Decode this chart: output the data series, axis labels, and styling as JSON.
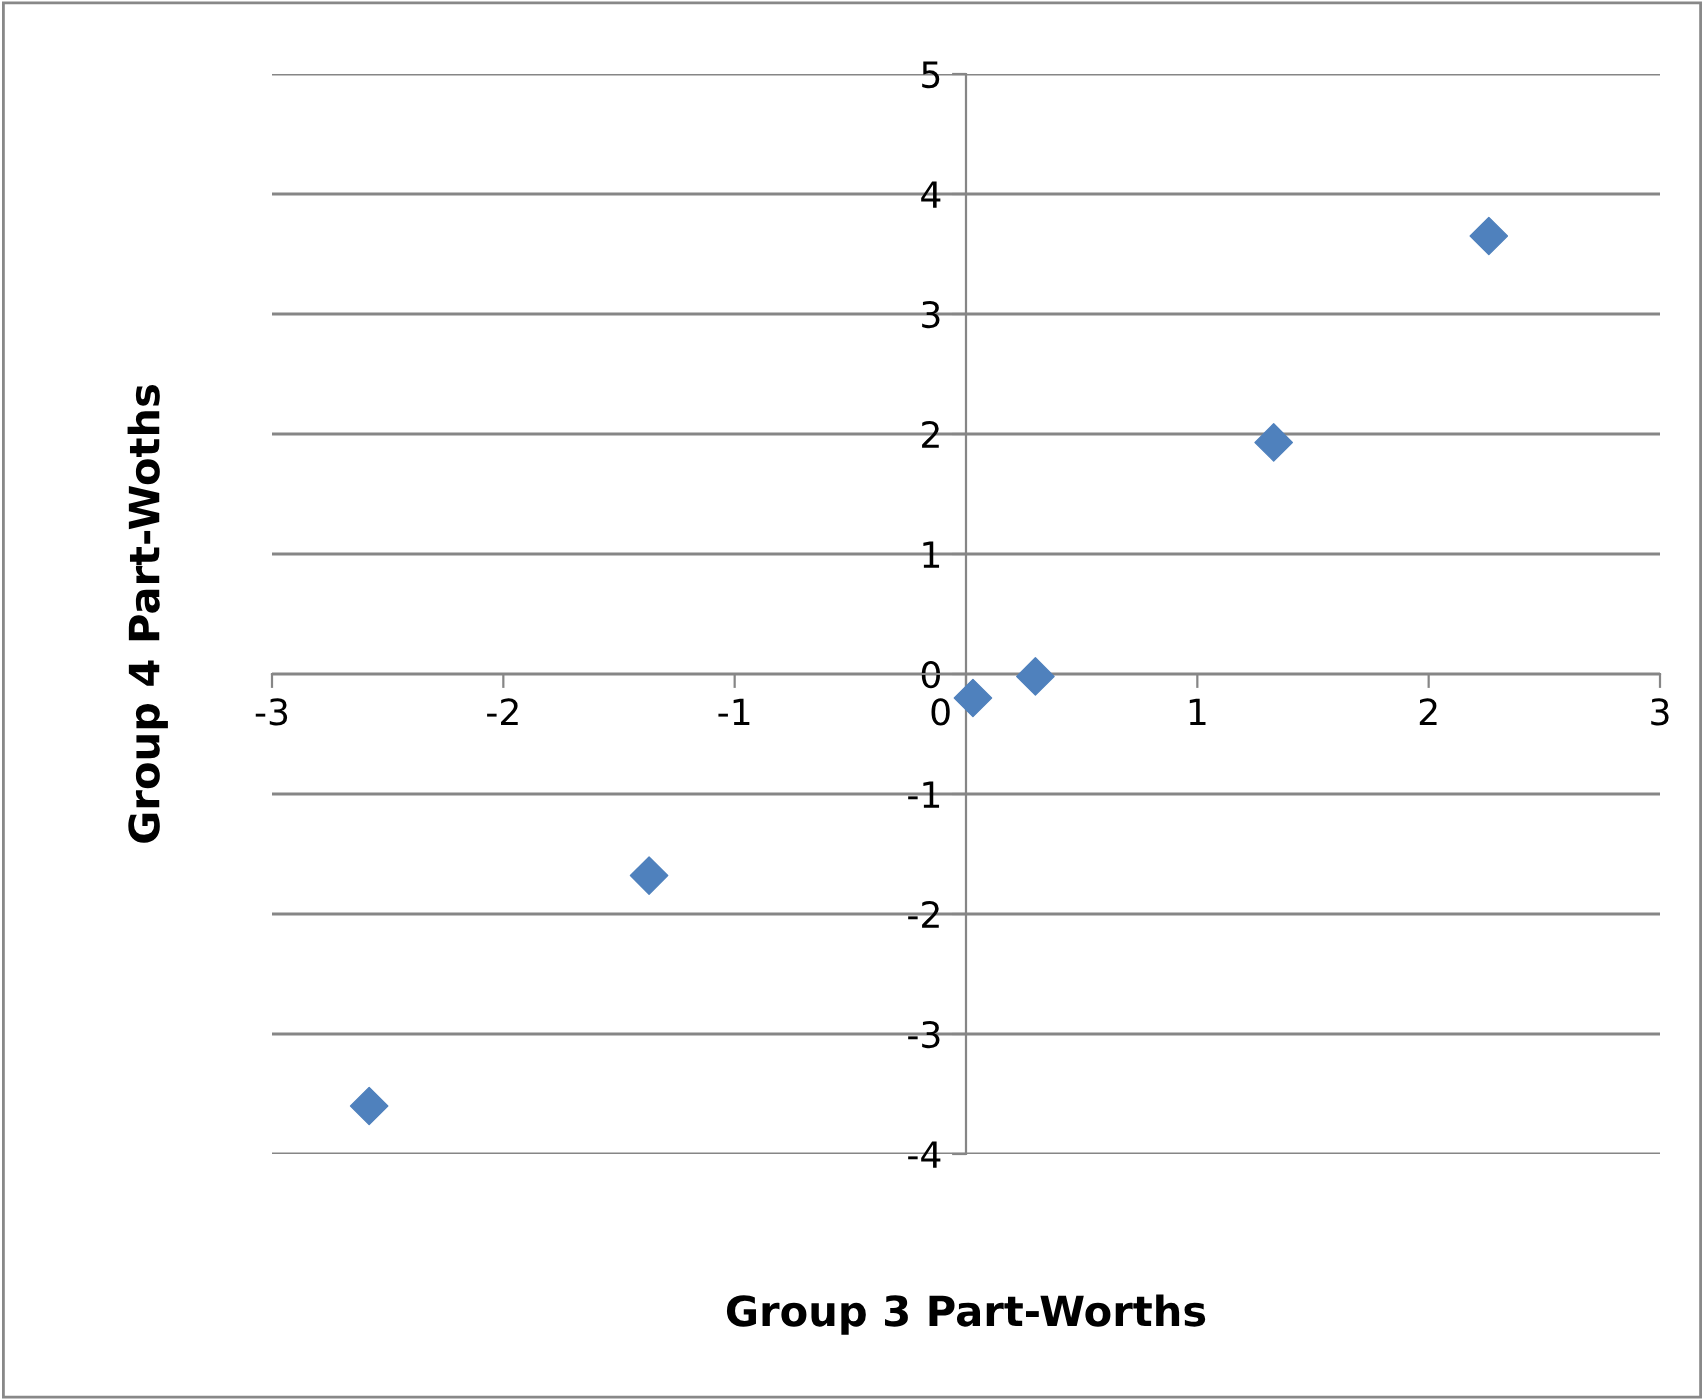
{
  "chart_data": {
    "type": "scatter",
    "xlabel": "Group 3 Part-Worths",
    "ylabel": "Group 4 Part-Woths",
    "x": [
      -2.58,
      -1.37,
      0.03,
      0.3,
      1.33,
      2.26
    ],
    "series": [
      {
        "color": "#4f81bd",
        "values": [
          -3.6,
          -1.68,
          -0.2,
          -0.02,
          1.93,
          3.65
        ]
      }
    ],
    "xlim": [
      -3,
      3
    ],
    "xticks": [
      -3,
      -2,
      -1,
      0,
      1,
      2,
      3
    ],
    "ylim": [
      -4,
      5
    ],
    "yticks": [
      -4,
      -3,
      -2,
      -1,
      0,
      1,
      2,
      3,
      4,
      5
    ],
    "grid": "y",
    "marker": "diamond"
  }
}
